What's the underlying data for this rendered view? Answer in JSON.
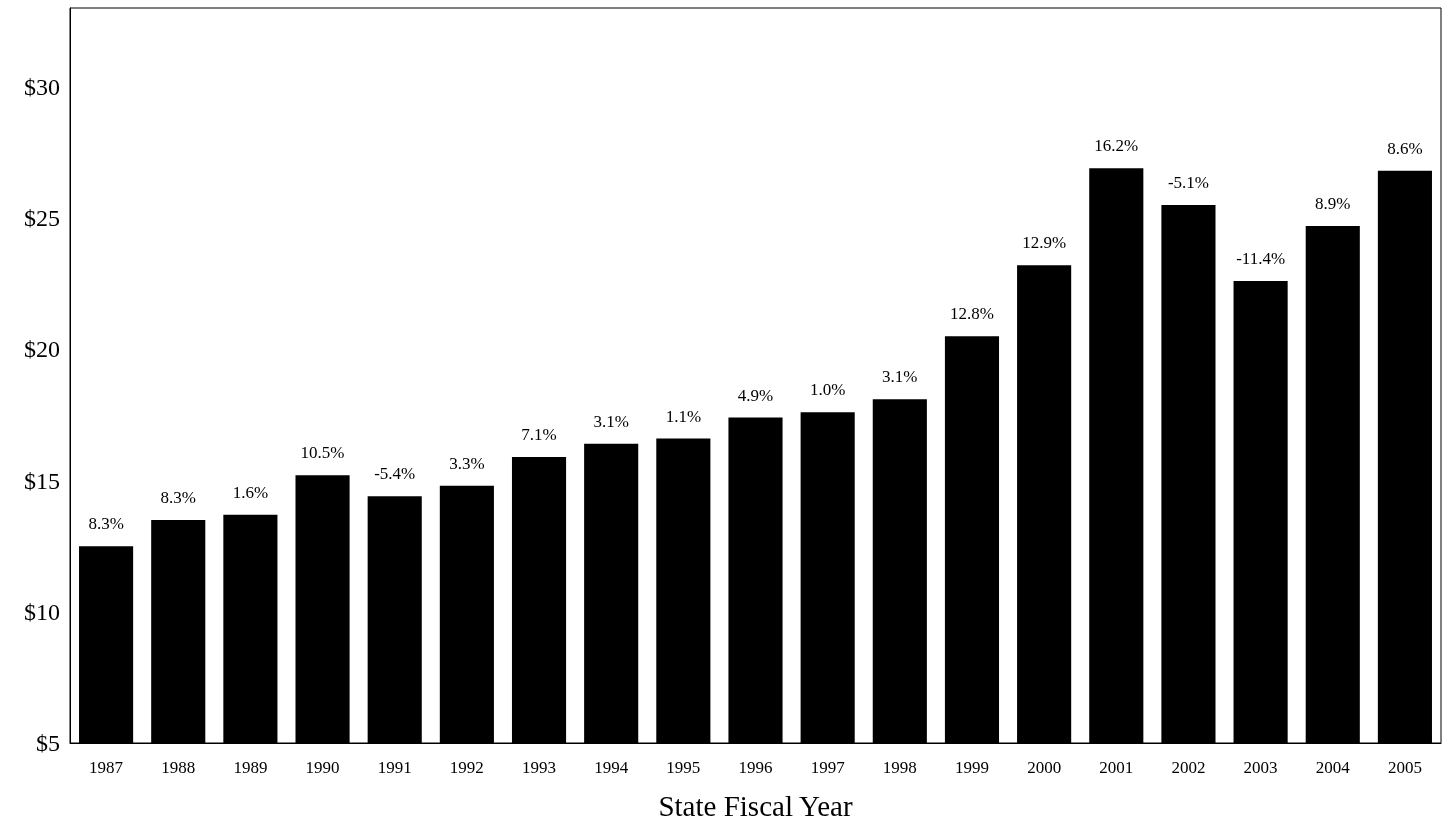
{
  "chart_data": {
    "type": "bar",
    "xlabel": "State Fiscal Year",
    "categories": [
      "1987",
      "1988",
      "1989",
      "1990",
      "1991",
      "1992",
      "1993",
      "1994",
      "1995",
      "1996",
      "1997",
      "1998",
      "1999",
      "2000",
      "2001",
      "2002",
      "2003",
      "2004",
      "2005"
    ],
    "values": [
      12.5,
      13.5,
      13.7,
      15.2,
      14.4,
      14.8,
      15.9,
      16.4,
      16.6,
      17.4,
      17.6,
      18.1,
      20.5,
      23.2,
      26.9,
      25.5,
      22.6,
      24.7,
      26.8
    ],
    "annotations": [
      {
        "text": "8.3%",
        "x": "1987",
        "y": 12.5
      },
      {
        "text": "8.3%",
        "x": "1988",
        "y": 13.5
      },
      {
        "text": "1.6%",
        "x": "1989",
        "y": 13.7
      },
      {
        "text": "10.5%",
        "x": "1990",
        "y": 15.2
      },
      {
        "text": "-5.4%",
        "x": "1991",
        "y": 14.4
      },
      {
        "text": "3.3%",
        "x": "1992",
        "y": 14.8
      },
      {
        "text": "7.1%",
        "x": "1993",
        "y": 15.9
      },
      {
        "text": "3.1%",
        "x": "1994",
        "y": 16.4
      },
      {
        "text": "1.1%",
        "x": "1995",
        "y": 16.6
      },
      {
        "text": "4.9%",
        "x": "1996",
        "y": 17.4
      },
      {
        "text": "1.0%",
        "x": "1997",
        "y": 17.6
      },
      {
        "text": "3.1%",
        "x": "1998",
        "y": 18.1
      },
      {
        "text": "12.8%",
        "x": "1999",
        "y": 20.5
      },
      {
        "text": "12.9%",
        "x": "2000",
        "y": 23.2
      },
      {
        "text": "16.2%",
        "x": "2001",
        "y": 26.9
      },
      {
        "text": "-5.1%",
        "x": "2002",
        "y": 25.5
      },
      {
        "text": "-11.4%",
        "x": "2003",
        "y": 22.6
      },
      {
        "text": "8.9%",
        "x": "2004",
        "y": 24.7
      },
      {
        "text": "8.6%",
        "x": "2005",
        "y": 26.8
      }
    ],
    "color": "#000000",
    "ylim": [
      5,
      33
    ],
    "yticks": [
      {
        "value": 5,
        "label": "$5"
      },
      {
        "value": 10,
        "label": "$10"
      },
      {
        "value": 15,
        "label": "$15"
      },
      {
        "value": 20,
        "label": "$20"
      },
      {
        "value": 25,
        "label": "$25"
      },
      {
        "value": 30,
        "label": "$30"
      }
    ]
  }
}
